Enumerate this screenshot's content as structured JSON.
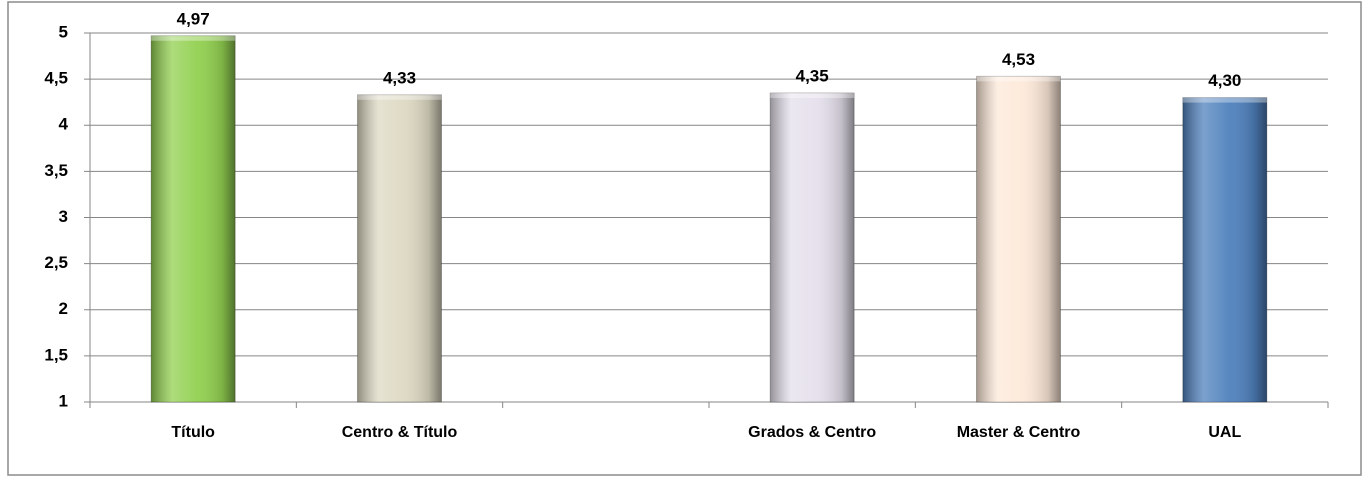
{
  "chart_data": {
    "type": "bar",
    "categories": [
      "Título",
      "Centro & Título",
      null,
      "Grados & Centro",
      "Master & Centro",
      "UAL"
    ],
    "values": [
      4.97,
      4.33,
      null,
      4.35,
      4.53,
      4.3
    ],
    "value_labels": [
      "4,97",
      "4,33",
      null,
      "4,35",
      "4,53",
      "4,30"
    ],
    "colors": [
      "#92d050",
      "#ddd9c3",
      "#ddd9c3",
      "#e5e0ec",
      "#fde9d9",
      "#4f81bd"
    ],
    "ylim": [
      1,
      5
    ],
    "yticks": [
      1,
      {
        "value": 1.5,
        "label": "1,5"
      },
      2,
      {
        "value": 2.5,
        "label": "2,5"
      },
      3,
      {
        "value": 3.5,
        "label": "3,5"
      },
      4,
      {
        "value": 4.5,
        "label": "4,5"
      },
      5
    ],
    "grid": true
  }
}
